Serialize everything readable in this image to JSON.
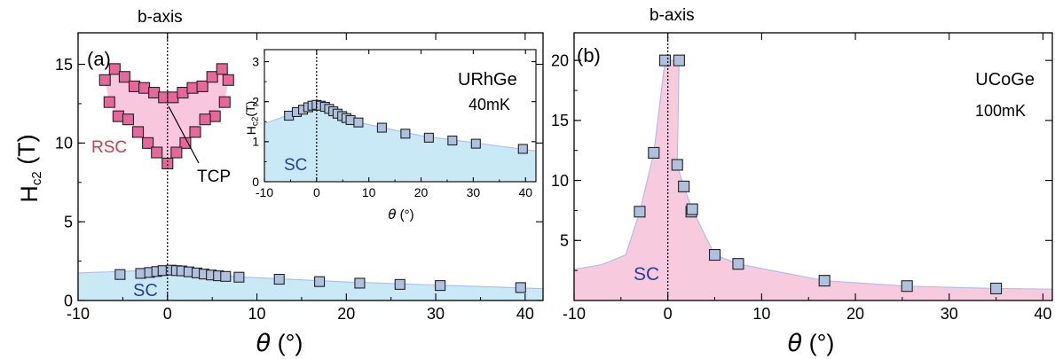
{
  "chart_data": [
    {
      "id": "a",
      "type": "scatter",
      "panel_label": "(a)",
      "top_label": "b-axis",
      "xlabel": "θ (°)",
      "ylabel": "Hc2 (T)",
      "xlim": [
        -10,
        42
      ],
      "ylim": [
        0,
        17
      ],
      "xticks": [
        -10,
        0,
        10,
        20,
        30,
        40
      ],
      "yticks": [
        0,
        5,
        10,
        15
      ],
      "region_label": "SC",
      "region_color": "#c9e9f6",
      "line_color": "#a9bfe8",
      "marker_color": "#aec2e0",
      "points": [
        {
          "x": -5.3,
          "y": 1.65
        },
        {
          "x": -3.0,
          "y": 1.72
        },
        {
          "x": -2.0,
          "y": 1.78
        },
        {
          "x": -1.2,
          "y": 1.84
        },
        {
          "x": -0.5,
          "y": 1.9
        },
        {
          "x": 0.4,
          "y": 1.93
        },
        {
          "x": 1.0,
          "y": 1.9
        },
        {
          "x": 1.6,
          "y": 1.88
        },
        {
          "x": 2.4,
          "y": 1.82
        },
        {
          "x": 3.3,
          "y": 1.75
        },
        {
          "x": 4.1,
          "y": 1.68
        },
        {
          "x": 4.9,
          "y": 1.62
        },
        {
          "x": 5.7,
          "y": 1.57
        },
        {
          "x": 6.5,
          "y": 1.53
        },
        {
          "x": 8.0,
          "y": 1.48
        },
        {
          "x": 12.5,
          "y": 1.35
        },
        {
          "x": 17.0,
          "y": 1.2
        },
        {
          "x": 21.5,
          "y": 1.1
        },
        {
          "x": 26.0,
          "y": 1.02
        },
        {
          "x": 30.5,
          "y": 0.95
        },
        {
          "x": 39.5,
          "y": 0.82
        }
      ],
      "boundary": [
        {
          "x": -10,
          "y": 1.75
        },
        {
          "x": 0,
          "y": 1.95
        },
        {
          "x": 8,
          "y": 1.5
        },
        {
          "x": 20,
          "y": 1.18
        },
        {
          "x": 42,
          "y": 0.75
        }
      ],
      "heart": {
        "label": "RSC",
        "point_label": "TCP",
        "color": "#e8679a",
        "fill": "#f8c6dd",
        "points": [
          {
            "x": -7.0,
            "y": 14.0
          },
          {
            "x": -5.9,
            "y": 14.7
          },
          {
            "x": -4.8,
            "y": 14.2
          },
          {
            "x": -3.7,
            "y": 13.6
          },
          {
            "x": -2.6,
            "y": 13.5
          },
          {
            "x": -1.5,
            "y": 13.2
          },
          {
            "x": -0.4,
            "y": 12.9
          },
          {
            "x": 0.6,
            "y": 12.9
          },
          {
            "x": 1.7,
            "y": 13.2
          },
          {
            "x": 2.8,
            "y": 13.5
          },
          {
            "x": 3.9,
            "y": 13.6
          },
          {
            "x": 5.0,
            "y": 14.2
          },
          {
            "x": 6.1,
            "y": 14.7
          },
          {
            "x": 6.8,
            "y": 14.0
          },
          {
            "x": -6.5,
            "y": 12.6
          },
          {
            "x": -5.5,
            "y": 11.7
          },
          {
            "x": -4.4,
            "y": 11.5
          },
          {
            "x": -3.3,
            "y": 10.7
          },
          {
            "x": -2.2,
            "y": 10.0
          },
          {
            "x": -1.2,
            "y": 9.4
          },
          {
            "x": 0.0,
            "y": 8.7
          },
          {
            "x": 6.4,
            "y": 12.6
          },
          {
            "x": 5.3,
            "y": 11.7
          },
          {
            "x": 4.2,
            "y": 11.5
          },
          {
            "x": 3.1,
            "y": 10.7
          },
          {
            "x": 2.0,
            "y": 10.0
          },
          {
            "x": 1.0,
            "y": 9.4
          }
        ]
      },
      "inset": {
        "title": "URhGe",
        "subtitle": "40mK",
        "xlabel": "θ (°)",
        "ylabel": "Hc2(T)",
        "xlim": [
          -10,
          42
        ],
        "ylim": [
          0,
          3.3
        ],
        "xticks": [
          -10,
          0,
          10,
          20,
          30,
          40
        ],
        "yticks": [
          0,
          1,
          2,
          3
        ],
        "region_label": "SC",
        "points": [
          {
            "x": -5.3,
            "y": 1.65
          },
          {
            "x": -3.8,
            "y": 1.74
          },
          {
            "x": -2.6,
            "y": 1.8
          },
          {
            "x": -1.6,
            "y": 1.86
          },
          {
            "x": -0.8,
            "y": 1.9
          },
          {
            "x": 0.0,
            "y": 1.92
          },
          {
            "x": 0.8,
            "y": 1.9
          },
          {
            "x": 1.6,
            "y": 1.87
          },
          {
            "x": 2.4,
            "y": 1.82
          },
          {
            "x": 3.2,
            "y": 1.76
          },
          {
            "x": 4.0,
            "y": 1.7
          },
          {
            "x": 4.9,
            "y": 1.64
          },
          {
            "x": 5.7,
            "y": 1.59
          },
          {
            "x": 6.5,
            "y": 1.54
          },
          {
            "x": 8.0,
            "y": 1.48
          },
          {
            "x": 12.5,
            "y": 1.35
          },
          {
            "x": 17.0,
            "y": 1.2
          },
          {
            "x": 21.5,
            "y": 1.1
          },
          {
            "x": 26.0,
            "y": 1.03
          },
          {
            "x": 30.5,
            "y": 0.95
          },
          {
            "x": 39.5,
            "y": 0.82
          }
        ],
        "boundary": [
          {
            "x": -10,
            "y": 1.45
          },
          {
            "x": 0,
            "y": 1.92
          },
          {
            "x": 8,
            "y": 1.48
          },
          {
            "x": 20,
            "y": 1.15
          },
          {
            "x": 42,
            "y": 0.77
          }
        ]
      }
    },
    {
      "id": "b",
      "type": "scatter",
      "panel_label": "(b)",
      "top_label": "b-axis",
      "title": "UCoGe",
      "subtitle": "100mK",
      "xlabel": "θ (°)",
      "xlim": [
        -10,
        41
      ],
      "ylim": [
        0,
        22.3
      ],
      "xticks": [
        -10,
        0,
        10,
        20,
        30,
        40
      ],
      "yticks": [
        5,
        10,
        15,
        20
      ],
      "region_label": "SC",
      "region_color": "#f8cade",
      "line_color": "#a9bfe8",
      "marker_color": "#aec2e0",
      "points": [
        {
          "x": -3.0,
          "y": 7.4
        },
        {
          "x": -1.5,
          "y": 12.3
        },
        {
          "x": -0.3,
          "y": 20.0
        },
        {
          "x": 1.2,
          "y": 20.0
        },
        {
          "x": 1.0,
          "y": 11.3
        },
        {
          "x": 1.7,
          "y": 9.5
        },
        {
          "x": 2.5,
          "y": 7.4
        },
        {
          "x": 2.6,
          "y": 7.6
        },
        {
          "x": 5.0,
          "y": 3.8
        },
        {
          "x": 7.5,
          "y": 3.05
        },
        {
          "x": 16.7,
          "y": 1.65
        },
        {
          "x": 25.5,
          "y": 1.2
        },
        {
          "x": 35.0,
          "y": 1.0
        }
      ],
      "boundary": [
        {
          "x": -10,
          "y": 2.6
        },
        {
          "x": -7,
          "y": 3.0
        },
        {
          "x": -4.5,
          "y": 3.8
        },
        {
          "x": -3.0,
          "y": 7.4
        },
        {
          "x": -1.5,
          "y": 12.3
        },
        {
          "x": -0.3,
          "y": 20.0
        },
        {
          "x": 1.2,
          "y": 20.0
        },
        {
          "x": 1.0,
          "y": 11.3
        },
        {
          "x": 1.7,
          "y": 9.5
        },
        {
          "x": 2.6,
          "y": 7.6
        },
        {
          "x": 5.0,
          "y": 3.8
        },
        {
          "x": 7.5,
          "y": 3.05
        },
        {
          "x": 16.7,
          "y": 1.65
        },
        {
          "x": 25.5,
          "y": 1.2
        },
        {
          "x": 35.0,
          "y": 1.0
        },
        {
          "x": 41,
          "y": 0.95
        }
      ]
    }
  ]
}
